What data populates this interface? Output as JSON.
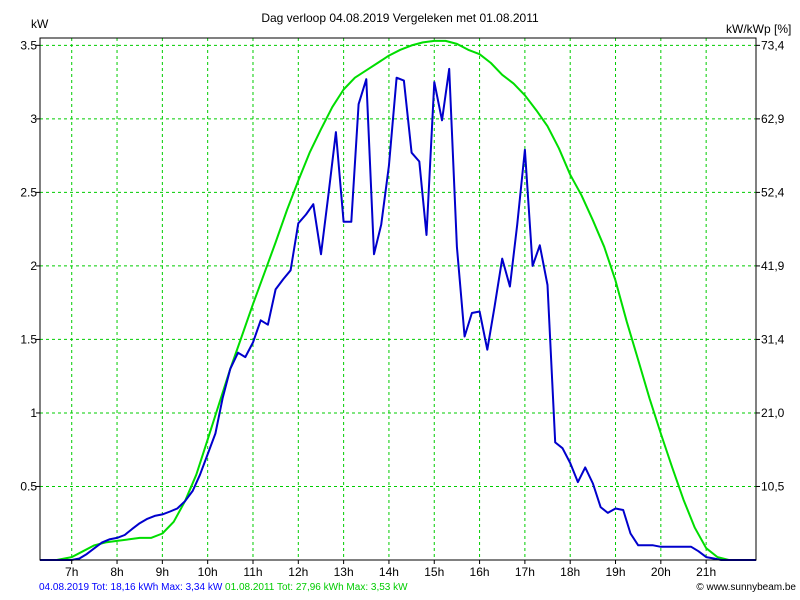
{
  "chart_data": {
    "type": "line",
    "title": "Dag  verloop 04.08.2019   Vergeleken met 01.08.2011",
    "ylabel_left": "kW",
    "ylabel_right": "kW/kWp [%]",
    "xlim": [
      6.3,
      22.1
    ],
    "ylim": [
      0,
      3.55
    ],
    "grid": true,
    "x_ticks": [
      7,
      8,
      9,
      10,
      11,
      12,
      13,
      14,
      15,
      16,
      17,
      18,
      19,
      20,
      21
    ],
    "x_tick_labels": [
      "7h",
      "8h",
      "9h",
      "10h",
      "11h",
      "12h",
      "13h",
      "14h",
      "15h",
      "16h",
      "17h",
      "18h",
      "19h",
      "20h",
      "21h"
    ],
    "y_ticks_left": [
      0.5,
      1,
      1.5,
      2,
      2.5,
      3,
      3.5
    ],
    "y_tick_labels_left": [
      "0.5",
      "1",
      "1.5",
      "2",
      "2.5",
      "3",
      "3.5"
    ],
    "y_tick_labels_right": [
      "10,5",
      "21,0",
      "31,4",
      "41,9",
      "52,4",
      "62,9",
      "73,4"
    ],
    "series": [
      {
        "color": "#0000cc",
        "x": [
          6.3,
          7.0,
          7.17,
          7.33,
          7.5,
          7.67,
          7.83,
          8.0,
          8.17,
          8.33,
          8.5,
          8.67,
          8.83,
          9.0,
          9.17,
          9.33,
          9.5,
          9.67,
          9.83,
          10.0,
          10.17,
          10.33,
          10.5,
          10.67,
          10.83,
          11.0,
          11.17,
          11.33,
          11.5,
          11.67,
          11.83,
          12.0,
          12.17,
          12.33,
          12.5,
          12.67,
          12.83,
          13.0,
          13.17,
          13.33,
          13.5,
          13.67,
          13.83,
          14.0,
          14.17,
          14.33,
          14.5,
          14.67,
          14.83,
          15.0,
          15.17,
          15.33,
          15.5,
          15.67,
          15.83,
          16.0,
          16.17,
          16.33,
          16.5,
          16.67,
          16.83,
          17.0,
          17.17,
          17.33,
          17.5,
          17.67,
          17.83,
          18.0,
          18.17,
          18.33,
          18.5,
          18.67,
          18.83,
          19.0,
          19.17,
          19.33,
          19.5,
          19.67,
          19.83,
          20.0,
          20.17,
          20.33,
          20.5,
          20.67,
          20.83,
          21.0,
          21.17,
          21.33,
          21.5,
          22.1
        ],
        "values": [
          0,
          0,
          0.01,
          0.04,
          0.08,
          0.12,
          0.14,
          0.15,
          0.17,
          0.21,
          0.25,
          0.28,
          0.3,
          0.31,
          0.33,
          0.35,
          0.4,
          0.47,
          0.58,
          0.72,
          0.86,
          1.1,
          1.3,
          1.41,
          1.38,
          1.48,
          1.63,
          1.6,
          1.84,
          1.91,
          1.97,
          2.29,
          2.35,
          2.42,
          2.08,
          2.5,
          2.91,
          2.3,
          2.3,
          3.1,
          3.27,
          2.08,
          2.28,
          2.68,
          3.28,
          3.26,
          2.77,
          2.71,
          2.21,
          3.25,
          2.99,
          3.34,
          2.13,
          1.52,
          1.68,
          1.69,
          1.43,
          1.72,
          2.05,
          1.86,
          2.28,
          2.79,
          2.0,
          2.14,
          1.87,
          0.8,
          0.76,
          0.66,
          0.53,
          0.63,
          0.52,
          0.36,
          0.32,
          0.35,
          0.34,
          0.18,
          0.1,
          0.1,
          0.1,
          0.09,
          0.09,
          0.09,
          0.09,
          0.09,
          0.06,
          0.02,
          0.01,
          0.0,
          0.0,
          0.0
        ]
      },
      {
        "color": "#00dd00",
        "x": [
          6.3,
          6.67,
          7.0,
          7.25,
          7.5,
          7.75,
          8.0,
          8.25,
          8.5,
          8.75,
          9.0,
          9.25,
          9.5,
          9.75,
          10.0,
          10.25,
          10.5,
          10.75,
          11.0,
          11.25,
          11.5,
          11.75,
          12.0,
          12.25,
          12.5,
          12.75,
          13.0,
          13.25,
          13.5,
          13.75,
          14.0,
          14.25,
          14.5,
          14.75,
          15.0,
          15.25,
          15.5,
          15.75,
          16.0,
          16.25,
          16.5,
          16.75,
          17.0,
          17.25,
          17.5,
          17.75,
          18.0,
          18.25,
          18.5,
          18.75,
          19.0,
          19.25,
          19.5,
          19.75,
          20.0,
          20.25,
          20.5,
          20.75,
          21.0,
          21.25,
          21.5,
          21.75,
          22.1
        ],
        "values": [
          0,
          0,
          0.02,
          0.06,
          0.1,
          0.12,
          0.13,
          0.14,
          0.15,
          0.15,
          0.18,
          0.26,
          0.4,
          0.58,
          0.82,
          1.06,
          1.3,
          1.52,
          1.74,
          1.95,
          2.16,
          2.38,
          2.58,
          2.77,
          2.93,
          3.08,
          3.2,
          3.28,
          3.33,
          3.38,
          3.43,
          3.47,
          3.5,
          3.52,
          3.53,
          3.53,
          3.51,
          3.47,
          3.44,
          3.38,
          3.3,
          3.24,
          3.16,
          3.06,
          2.95,
          2.8,
          2.62,
          2.48,
          2.31,
          2.13,
          1.9,
          1.62,
          1.36,
          1.1,
          0.86,
          0.63,
          0.41,
          0.22,
          0.08,
          0.02,
          0.0,
          0.0,
          0.0
        ]
      }
    ]
  },
  "footer": {
    "series1_summary": "04.08.2019 Tot: 18,16 kWh Max: 3,34 kW",
    "series2_summary": "01.08.2011 Tot: 27,96 kWh Max: 3,53 kW",
    "credit": "© www.sunnybeam.be"
  }
}
